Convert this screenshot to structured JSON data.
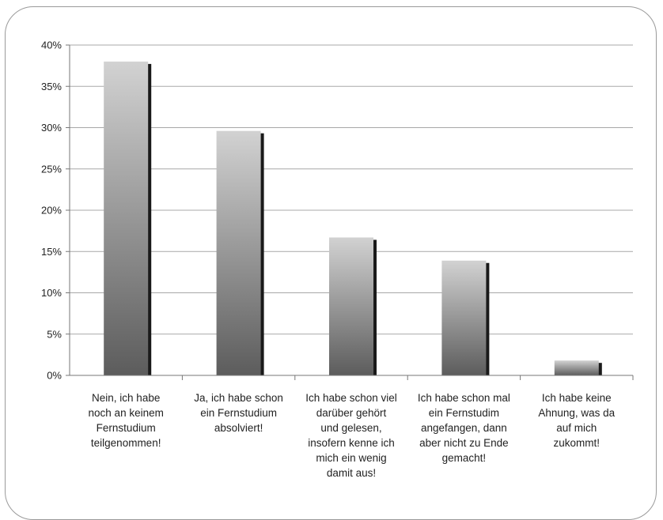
{
  "chart_data": {
    "type": "bar",
    "categories": [
      "Nein, ich habe\nnoch an keinem\nFernstudium\nteilgenommen!",
      "Ja, ich habe schon\nein Fernstudium\nabsolviert!",
      "Ich habe schon viel\ndarüber gehört\nund gelesen,\ninsofern kenne ich\nmich ein wenig\ndamit aus!",
      "Ich habe schon mal\nein Fernstudim\nangefangen, dann\naber nicht zu Ende\ngemacht!",
      "Ich habe keine\nAhnung, was da\nauf mich\nzukommt!"
    ],
    "values": [
      38,
      29.6,
      16.7,
      13.9,
      1.8
    ],
    "yticks": [
      "0%",
      "5%",
      "10%",
      "15%",
      "20%",
      "25%",
      "30%",
      "35%",
      "40%"
    ],
    "ylim": [
      0,
      40
    ],
    "grid": true,
    "colors": {
      "bar_top": "#d2d2d2",
      "bar_bottom": "#5c5c5c",
      "bar_shadow": "#1a1a1a",
      "grid": "#a8a8a8"
    }
  }
}
